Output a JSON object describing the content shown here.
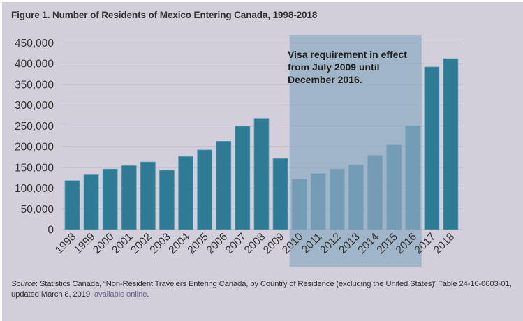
{
  "figure": {
    "title": "Figure 1. Number of Residents of Mexico Entering Canada, 1998-2018"
  },
  "colors": {
    "background": "#d2cfdb",
    "bar": "#2e7b96",
    "bar_edge": "#5f9cb4",
    "gridline": "#b7b4c0",
    "shade": "#8eaac0",
    "annotation_text": "#1f1f1f",
    "link": "#6a6489"
  },
  "chart_data": {
    "type": "bar",
    "title": "Figure 1. Number of Residents of Mexico Entering Canada, 1998-2018",
    "xlabel": "",
    "ylabel": "",
    "ylim": [
      0,
      450000
    ],
    "grid": true,
    "categories": [
      "1998",
      "1999",
      "2000",
      "2001",
      "2002",
      "2003",
      "2004",
      "2005",
      "2006",
      "2007",
      "2008",
      "2009",
      "2010",
      "2011",
      "2012",
      "2013",
      "2014",
      "2015",
      "2016",
      "2017",
      "2018"
    ],
    "values": [
      118000,
      132000,
      146000,
      154000,
      163000,
      143000,
      176000,
      192000,
      213000,
      249000,
      268000,
      171000,
      122000,
      135000,
      146000,
      156000,
      179000,
      204000,
      250000,
      392000,
      412000
    ],
    "y_ticks": [
      0,
      50000,
      100000,
      150000,
      200000,
      250000,
      300000,
      350000,
      400000,
      450000
    ],
    "y_tick_labels": [
      "0",
      "50,000",
      "100,000",
      "150,000",
      "200,000",
      "250,000",
      "300,000",
      "350,000",
      "400,000",
      "450,000"
    ],
    "shaded_region": {
      "from_category": "2010",
      "to_category": "2016",
      "label": "Visa requirement in effect from July 2009 until December 2016.",
      "label_lines": [
        "Visa requirement in effect",
        "from July 2009 until",
        "December 2016."
      ]
    }
  },
  "source": {
    "label": "Source",
    "text": ": Statistics Canada, “Non-Resident Travelers Entering Canada, by Country of Residence (excluding the United States)” Table 24-10-0003-01, updated March 8, 2019, ",
    "link_text": "available online",
    "end": "."
  }
}
